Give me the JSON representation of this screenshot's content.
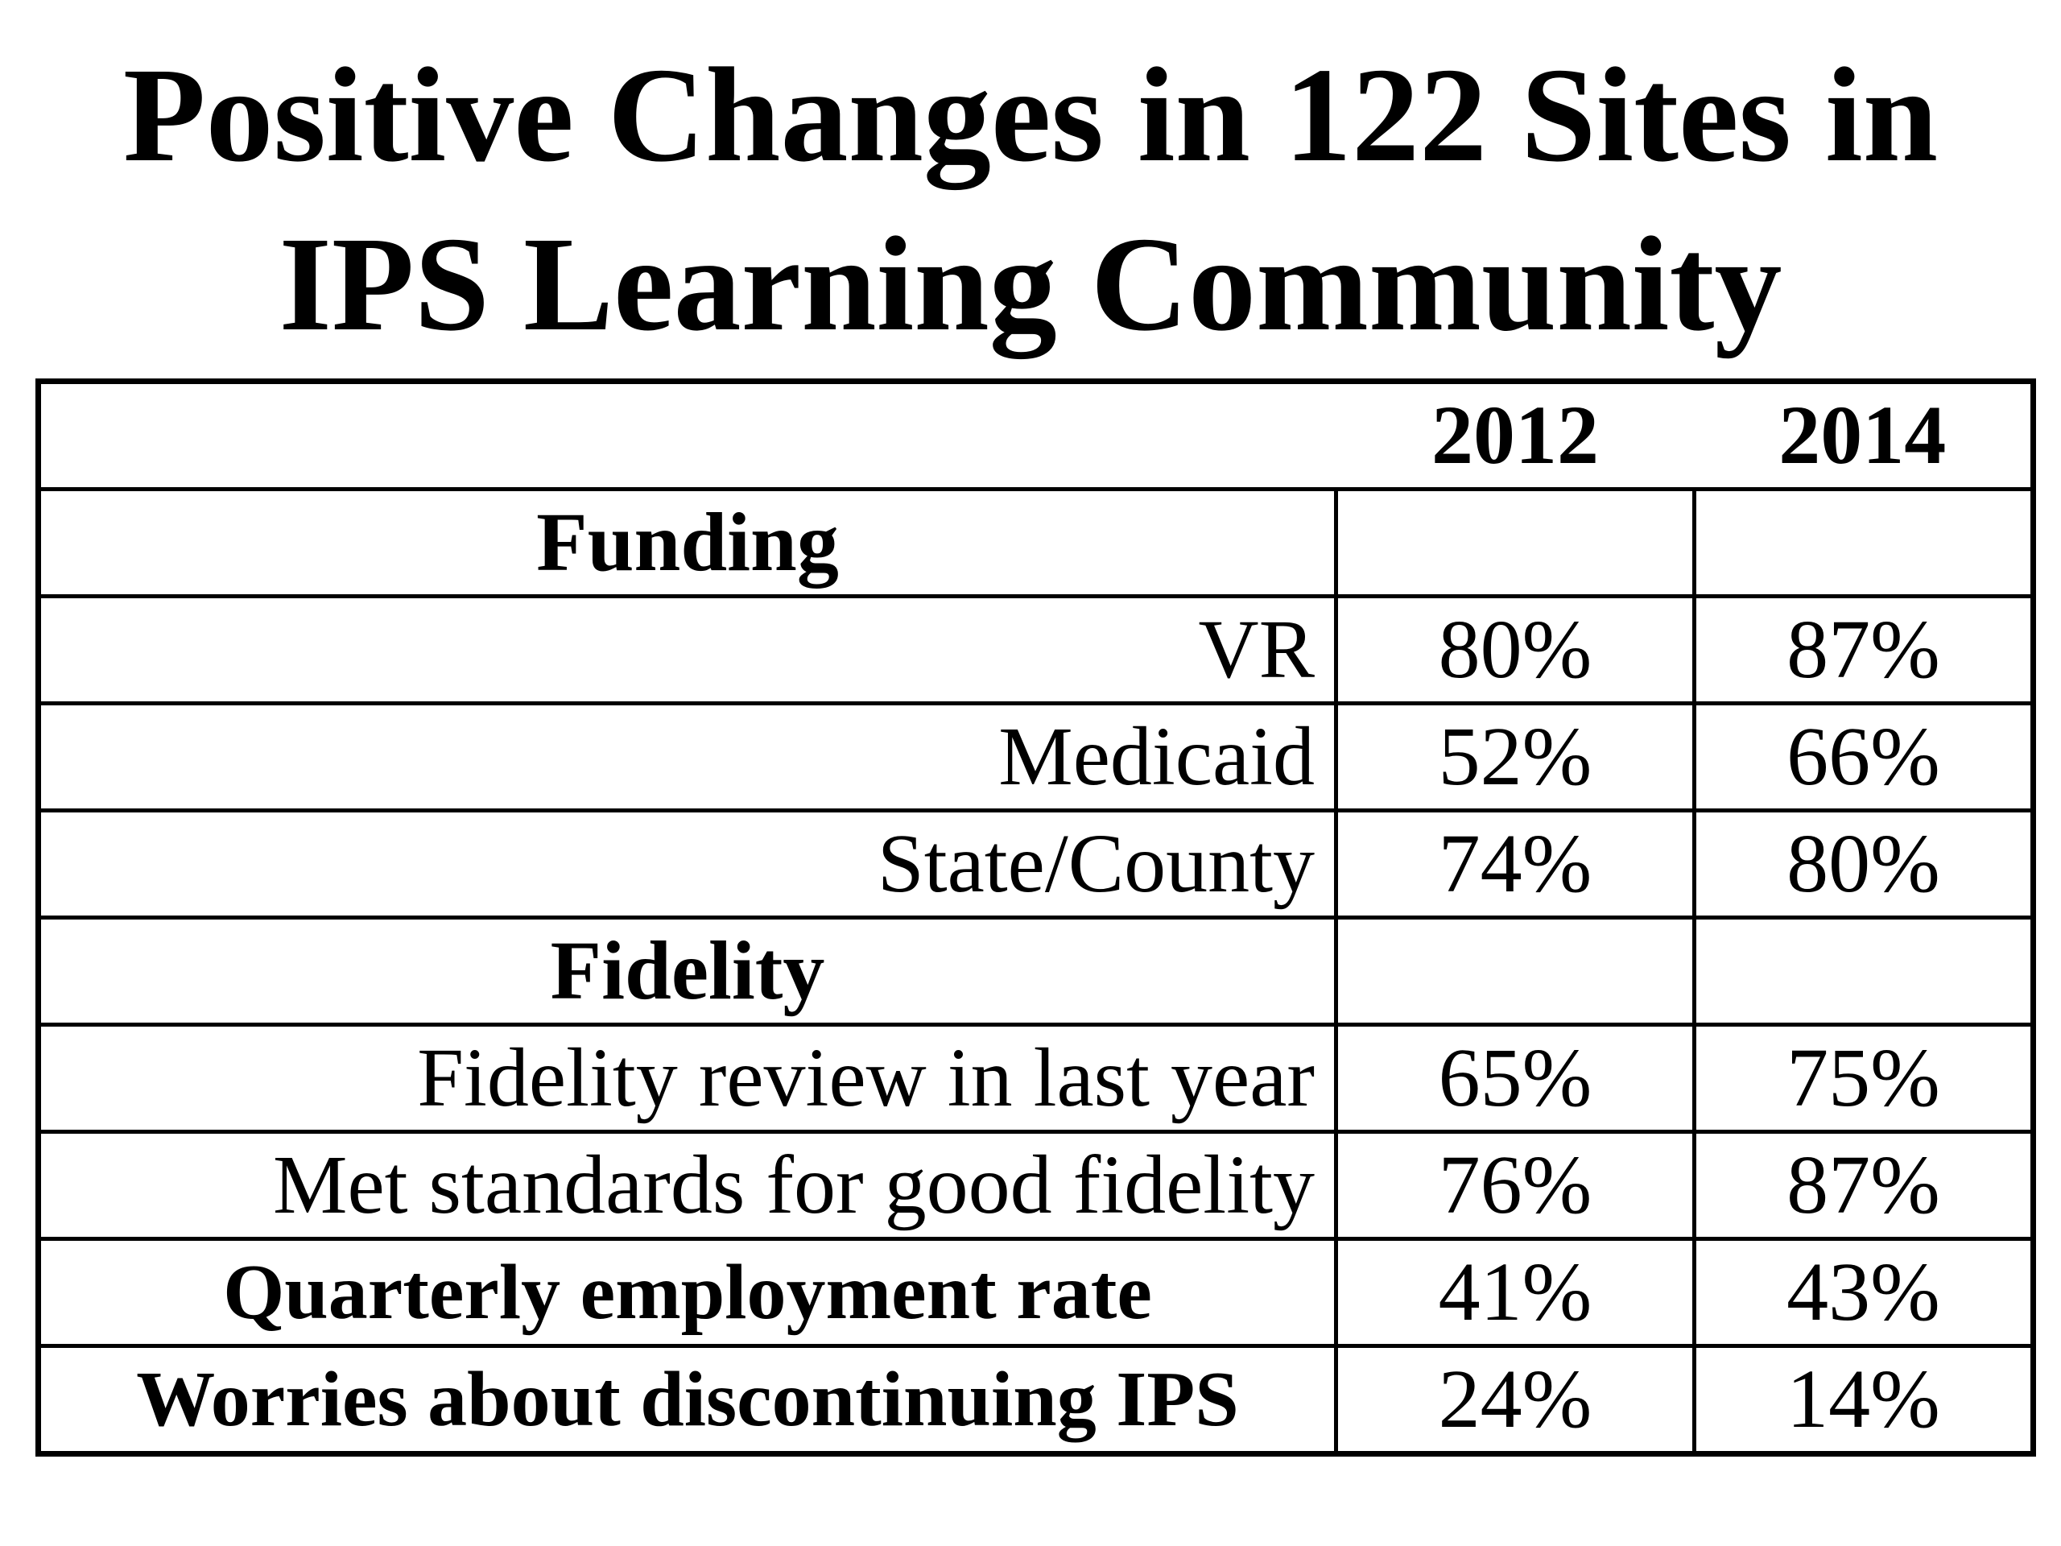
{
  "title": {
    "line1": "Positive Changes in 122 Sites in",
    "line2": "IPS Learning Community"
  },
  "chart_data": {
    "type": "table",
    "title": "Positive Changes in 122 Sites in IPS Learning Community",
    "columns": [
      "",
      "2012",
      "2014"
    ],
    "rows": [
      {
        "label": "Funding",
        "kind": "section",
        "v2012": "",
        "v2014": ""
      },
      {
        "label": "VR",
        "kind": "item",
        "v2012": "80%",
        "v2014": "87%"
      },
      {
        "label": "Medicaid",
        "kind": "item",
        "v2012": "52%",
        "v2014": "66%"
      },
      {
        "label": "State/County",
        "kind": "item",
        "v2012": "74%",
        "v2014": "80%"
      },
      {
        "label": "Fidelity",
        "kind": "section",
        "v2012": "",
        "v2014": ""
      },
      {
        "label": "Fidelity review in last year",
        "kind": "item",
        "v2012": "65%",
        "v2014": "75%"
      },
      {
        "label": "Met standards for good fidelity",
        "kind": "item",
        "v2012": "76%",
        "v2014": "87%"
      },
      {
        "label": "Quarterly employment rate",
        "kind": "bold",
        "v2012": "41%",
        "v2014": "43%"
      },
      {
        "label": "Worries about discontinuing IPS",
        "kind": "bold",
        "v2012": "24%",
        "v2014": "14%"
      }
    ]
  }
}
